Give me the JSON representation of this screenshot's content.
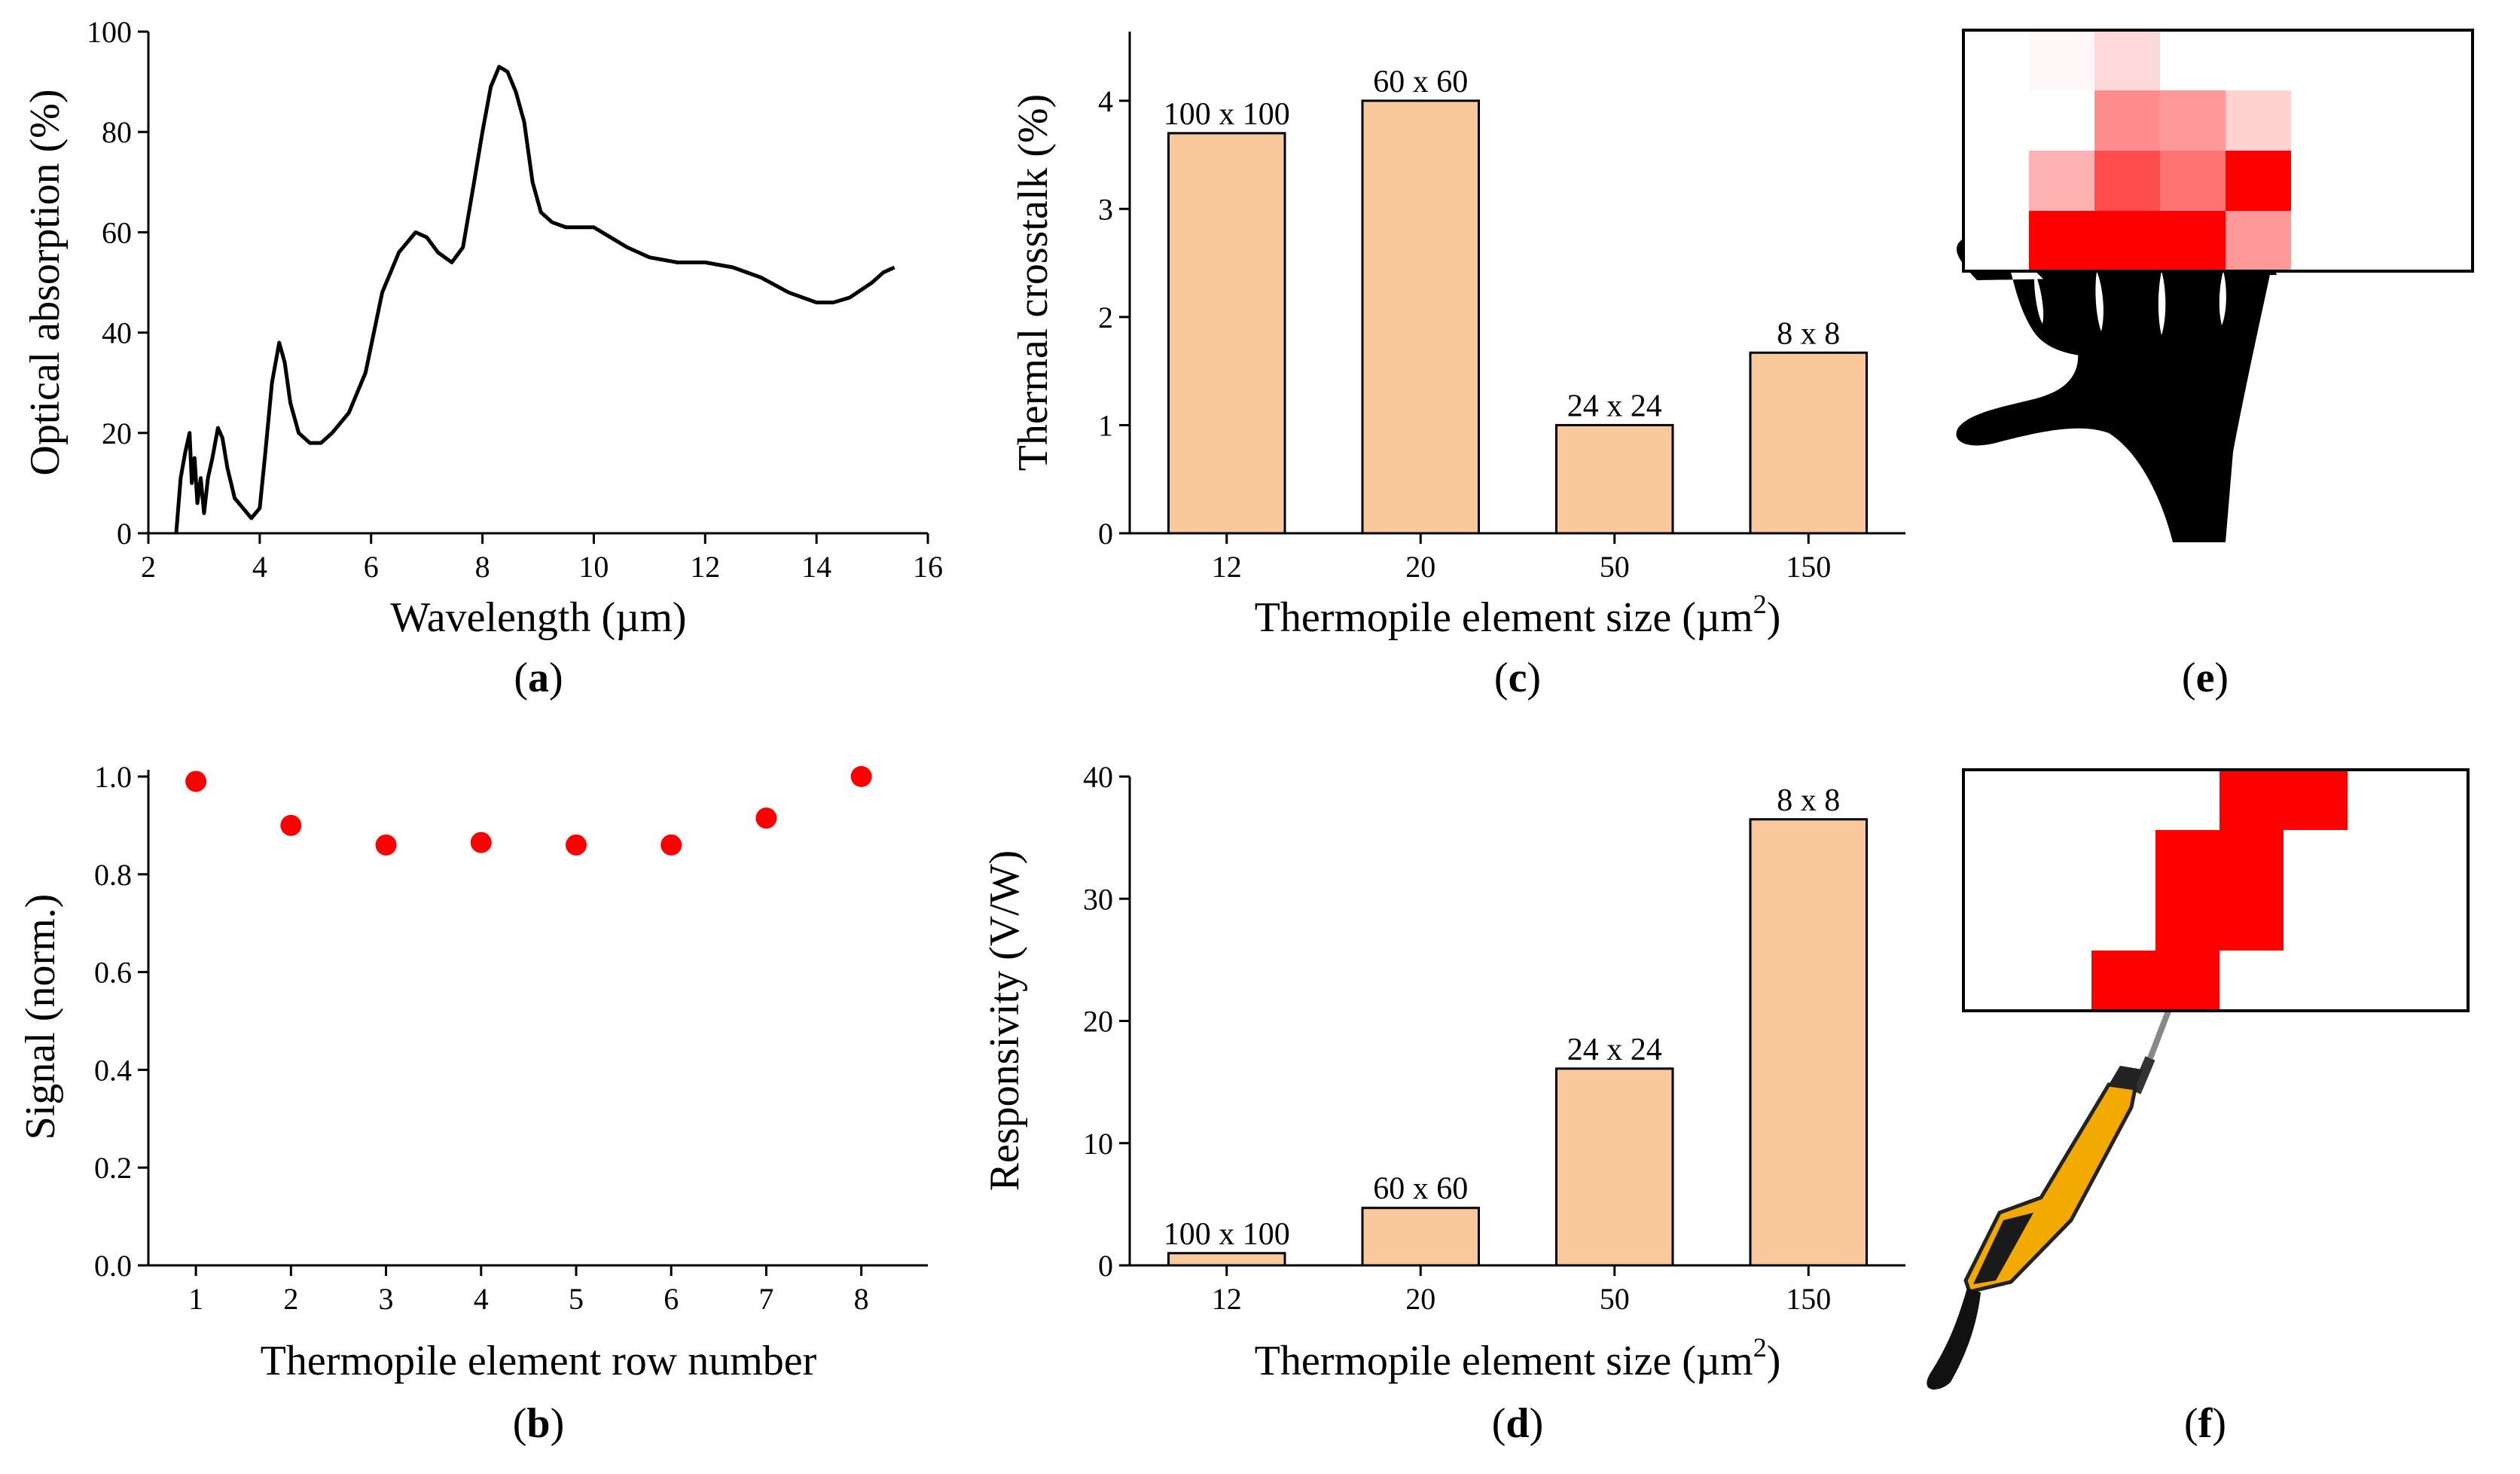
{
  "colors": {
    "bar_fill": "#F9C89B",
    "marker": "#FF0000",
    "heat_red": "#FF0000",
    "line": "#000000"
  },
  "panels": {
    "a": {
      "label_pre": "(",
      "letter": "a",
      "label_post": ")"
    },
    "b": {
      "label_pre": "(",
      "letter": "b",
      "label_post": ")"
    },
    "c": {
      "label_pre": "(",
      "letter": "c",
      "label_post": ")"
    },
    "d": {
      "label_pre": "(",
      "letter": "d",
      "label_post": ")"
    },
    "e": {
      "label_pre": "(",
      "letter": "e",
      "label_post": ")"
    },
    "f": {
      "label_pre": "(",
      "letter": "f",
      "label_post": ")"
    }
  },
  "chart_data": [
    {
      "id": "a",
      "type": "line",
      "xlabel": "Wavelength (µm)",
      "ylabel": "Optical absorption (%)",
      "xlim": [
        2,
        16
      ],
      "ylim": [
        0,
        100
      ],
      "xticks": [
        2,
        4,
        6,
        8,
        10,
        12,
        14,
        16
      ],
      "yticks": [
        0,
        20,
        40,
        60,
        80,
        100
      ],
      "grid": false,
      "series": [
        {
          "x": [
            2.5,
            2.58,
            2.66,
            2.74,
            2.78,
            2.83,
            2.88,
            2.94,
            3.0,
            3.07,
            3.15,
            3.25,
            3.33,
            3.42,
            3.55,
            3.7,
            3.85,
            4.0,
            4.1,
            4.22,
            4.35,
            4.45,
            4.55,
            4.7,
            4.9,
            5.1,
            5.3,
            5.6,
            5.9,
            6.2,
            6.5,
            6.8,
            7.0,
            7.2,
            7.45,
            7.65,
            7.85,
            8.0,
            8.15,
            8.3,
            8.45,
            8.6,
            8.75,
            8.9,
            9.05,
            9.25,
            9.5,
            9.8,
            10.0,
            10.3,
            10.6,
            11.0,
            11.5,
            12.0,
            12.5,
            13.0,
            13.5,
            14.0,
            14.3,
            14.6,
            15.0,
            15.2,
            15.4
          ],
          "y": [
            0,
            11,
            16,
            20,
            10,
            15,
            6,
            11,
            4,
            11,
            15,
            21,
            19,
            13,
            7,
            5,
            3,
            5,
            16,
            30,
            38,
            34,
            26,
            20,
            18,
            18,
            20,
            24,
            32,
            48,
            56,
            60,
            59,
            56,
            54,
            57,
            70,
            80,
            89,
            93,
            92,
            88,
            82,
            70,
            64,
            62,
            61,
            61,
            61,
            59,
            57,
            55,
            54,
            54,
            53,
            51,
            48,
            46,
            46,
            47,
            50,
            52,
            53
          ]
        }
      ]
    },
    {
      "id": "b",
      "type": "scatter",
      "xlabel": "Thermopile element row number",
      "ylabel": "Signal (norm.)",
      "xlim": [
        0.5,
        8.7
      ],
      "ylim": [
        0,
        1.0
      ],
      "xticks": [
        1,
        2,
        3,
        4,
        5,
        6,
        7,
        8
      ],
      "ytick_labels": [
        "0.0",
        "0.2",
        "0.4",
        "0.6",
        "0.8",
        "1.0"
      ],
      "grid": false,
      "series": [
        {
          "x": [
            1,
            2,
            3,
            4,
            5,
            6,
            7,
            8
          ],
          "y": [
            0.99,
            0.9,
            0.86,
            0.865,
            0.86,
            0.86,
            0.915,
            1.0
          ]
        }
      ]
    },
    {
      "id": "c",
      "type": "bar",
      "xlabel_pre": "Thermopile element size (",
      "xlabel_unit": "µm",
      "xlabel_sup": "2",
      "xlabel_post": ")",
      "ylabel": "Thermal crosstalk (%)",
      "categories": [
        "12",
        "20",
        "50",
        "150"
      ],
      "bar_labels": [
        "100 x 100",
        "60 x 60",
        "24 x 24",
        "8 x 8"
      ],
      "values": [
        3.7,
        4.0,
        1.0,
        1.67
      ],
      "ylim": [
        0,
        4.5
      ],
      "yticks": [
        0,
        1,
        2,
        3,
        4
      ],
      "grid": false
    },
    {
      "id": "d",
      "type": "bar",
      "xlabel_pre": "Thermopile element size (",
      "xlabel_unit": "µm",
      "xlabel_sup": "2",
      "xlabel_post": ")",
      "ylabel": "Responsivity (V/W)",
      "categories": [
        "12",
        "20",
        "50",
        "150"
      ],
      "bar_labels": [
        "100 x 100",
        "60 x 60",
        "24 x 24",
        "8 x 8"
      ],
      "values": [
        1.0,
        4.7,
        16.1,
        36.5
      ],
      "ylim": [
        0,
        40
      ],
      "yticks": [
        0,
        10,
        20,
        30,
        40
      ],
      "grid": false
    }
  ],
  "heatmap_e": {
    "cols": 6,
    "rows": 4,
    "cells": [
      [
        0.0,
        0.03,
        0.15,
        0.0,
        0.0,
        0.0
      ],
      [
        0.0,
        0.0,
        0.45,
        0.4,
        0.18,
        0.0
      ],
      [
        0.0,
        0.3,
        0.7,
        0.55,
        1.0,
        0.0
      ],
      [
        0.0,
        1.0,
        1.0,
        1.0,
        0.4,
        0.0
      ]
    ]
  },
  "heatmap_f": {
    "cols": 8,
    "rows": 4,
    "cells": [
      [
        0,
        0,
        0,
        0,
        1,
        1,
        0,
        0
      ],
      [
        0,
        0,
        0,
        1,
        1,
        0,
        0,
        0
      ],
      [
        0,
        0,
        0,
        1,
        1,
        0,
        0,
        0
      ],
      [
        0,
        0,
        1,
        1,
        0,
        0,
        0,
        0
      ]
    ]
  },
  "icons": {
    "e": "hand-icon",
    "f": "soldering-iron-icon"
  }
}
